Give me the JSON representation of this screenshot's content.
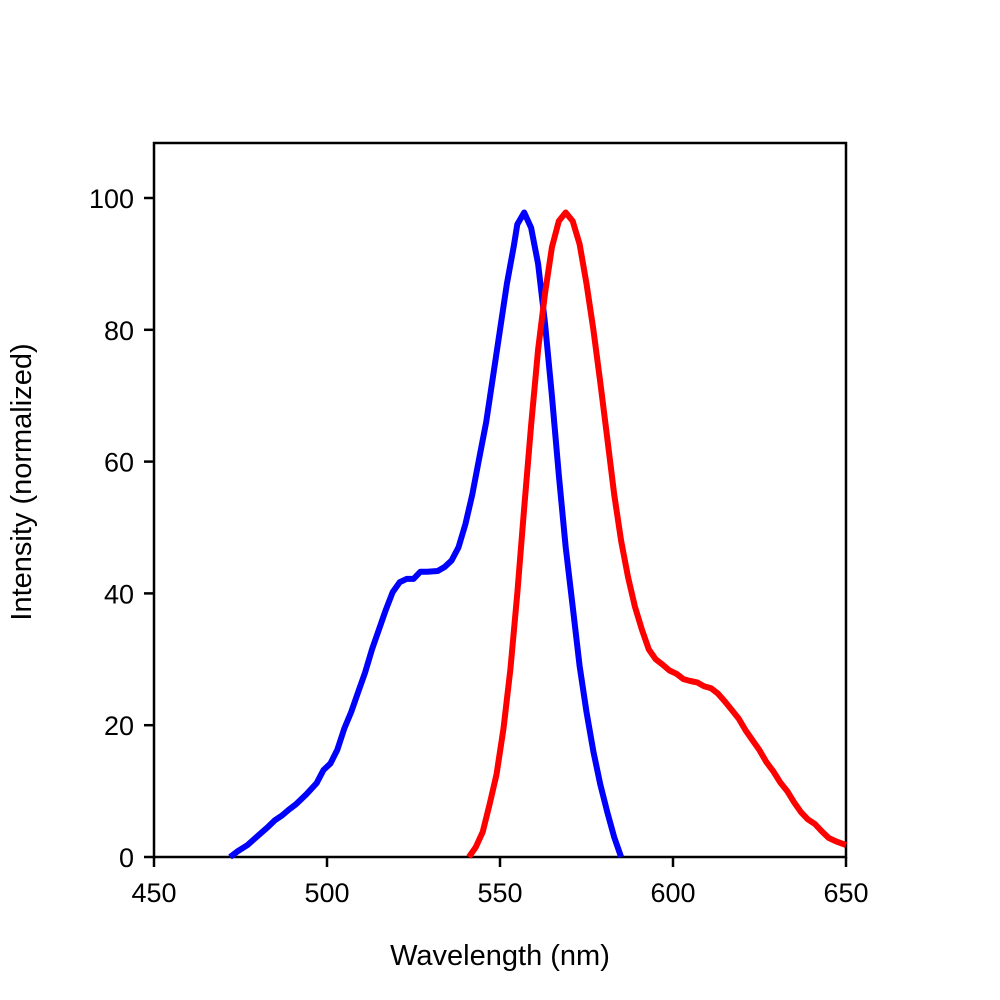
{
  "chart_data": {
    "type": "line",
    "title": "",
    "xlabel": "Wavelength (nm)",
    "ylabel": "Intensity (normalized)",
    "xlim": [
      450,
      650
    ],
    "ylim": [
      0,
      100
    ],
    "x_ticks": [
      "450",
      "500",
      "550",
      "600",
      "650"
    ],
    "y_ticks": [
      "0",
      "20",
      "40",
      "60",
      "80",
      "100"
    ],
    "grid": false,
    "legend": "none",
    "series": [
      {
        "color": "#0000ff",
        "points": [
          [
            472,
            0
          ],
          [
            474,
            0.8
          ],
          [
            477,
            1.8
          ],
          [
            480,
            3.2
          ],
          [
            483,
            4.6
          ],
          [
            485,
            5.6
          ],
          [
            487,
            6.3
          ],
          [
            489,
            7.2
          ],
          [
            491,
            8
          ],
          [
            494,
            9.5
          ],
          [
            497,
            11.2
          ],
          [
            499,
            13.2
          ],
          [
            501,
            14.2
          ],
          [
            503,
            16.3
          ],
          [
            505,
            19.5
          ],
          [
            507,
            22
          ],
          [
            509,
            25
          ],
          [
            511,
            28
          ],
          [
            513,
            31.5
          ],
          [
            515,
            34.5
          ],
          [
            517,
            37.5
          ],
          [
            519,
            40.2
          ],
          [
            521,
            41.7
          ],
          [
            523,
            42.2
          ],
          [
            525,
            42.2
          ],
          [
            527,
            43.3
          ],
          [
            529,
            43.3
          ],
          [
            532,
            43.4
          ],
          [
            534,
            44
          ],
          [
            536,
            45
          ],
          [
            538,
            47
          ],
          [
            540,
            50.5
          ],
          [
            542,
            55
          ],
          [
            544,
            60.5
          ],
          [
            546,
            66
          ],
          [
            548,
            73
          ],
          [
            550,
            80
          ],
          [
            552,
            87
          ],
          [
            554,
            92.7
          ],
          [
            555,
            96
          ],
          [
            557,
            97.8
          ],
          [
            559,
            95.5
          ],
          [
            561,
            90
          ],
          [
            563,
            81
          ],
          [
            565,
            70
          ],
          [
            567,
            58
          ],
          [
            569,
            47
          ],
          [
            571,
            38
          ],
          [
            573,
            29
          ],
          [
            575,
            22
          ],
          [
            577,
            16
          ],
          [
            579,
            11
          ],
          [
            581,
            6.8
          ],
          [
            583,
            3
          ],
          [
            585,
            0
          ]
        ]
      },
      {
        "color": "#ff0000",
        "points": [
          [
            541,
            0
          ],
          [
            543,
            1.5
          ],
          [
            545,
            3.8
          ],
          [
            547,
            8
          ],
          [
            549,
            12.5
          ],
          [
            551,
            19.5
          ],
          [
            553,
            28.5
          ],
          [
            555,
            40
          ],
          [
            557,
            53
          ],
          [
            559,
            65.5
          ],
          [
            561,
            77
          ],
          [
            563,
            85.5
          ],
          [
            565,
            92.5
          ],
          [
            567,
            96.5
          ],
          [
            569,
            97.8
          ],
          [
            571,
            96.5
          ],
          [
            573,
            93
          ],
          [
            575,
            87
          ],
          [
            577,
            80
          ],
          [
            579,
            72
          ],
          [
            581,
            63.5
          ],
          [
            583,
            55
          ],
          [
            585,
            48
          ],
          [
            587,
            42.5
          ],
          [
            589,
            38
          ],
          [
            591,
            34.5
          ],
          [
            593,
            31.5
          ],
          [
            595,
            30
          ],
          [
            597,
            29.2
          ],
          [
            599,
            28.3
          ],
          [
            601,
            27.8
          ],
          [
            603,
            27
          ],
          [
            605,
            26.7
          ],
          [
            607,
            26.5
          ],
          [
            609,
            25.9
          ],
          [
            611,
            25.6
          ],
          [
            613,
            24.8
          ],
          [
            615,
            23.6
          ],
          [
            617,
            22.3
          ],
          [
            619,
            21
          ],
          [
            621,
            19.2
          ],
          [
            623,
            17.7
          ],
          [
            625,
            16.2
          ],
          [
            627,
            14.4
          ],
          [
            629,
            13
          ],
          [
            631,
            11.3
          ],
          [
            633,
            10
          ],
          [
            635,
            8.3
          ],
          [
            637,
            6.8
          ],
          [
            639,
            5.7
          ],
          [
            641,
            5
          ],
          [
            643,
            3.9
          ],
          [
            645,
            2.9
          ],
          [
            647,
            2.4
          ],
          [
            650,
            1.8
          ]
        ]
      }
    ]
  }
}
